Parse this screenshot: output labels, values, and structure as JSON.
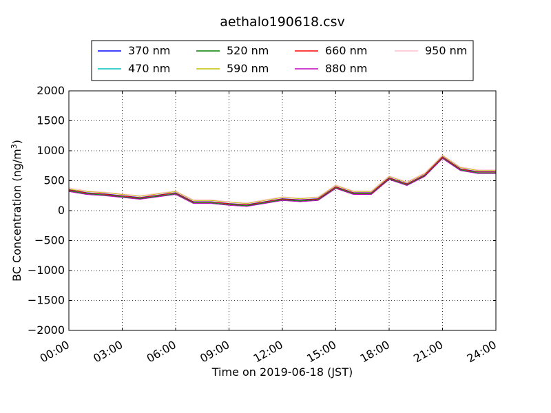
{
  "chart_data": {
    "type": "line",
    "title": "aethalo190618.csv",
    "xlabel": "Time on 2019-06-18 (JST)",
    "ylabel_main": "BC Concentration (ng/m",
    "ylabel_sup": "3",
    "ylabel_end": ")",
    "xlim_hours": [
      0,
      24
    ],
    "ylim": [
      -2000,
      2000
    ],
    "grid": true,
    "legend_placement": "top-center",
    "x_ticks": [
      {
        "hours": 0,
        "label": "00:00"
      },
      {
        "hours": 3,
        "label": "03:00"
      },
      {
        "hours": 6,
        "label": "06:00"
      },
      {
        "hours": 9,
        "label": "09:00"
      },
      {
        "hours": 12,
        "label": "12:00"
      },
      {
        "hours": 15,
        "label": "15:00"
      },
      {
        "hours": 18,
        "label": "18:00"
      },
      {
        "hours": 21,
        "label": "21:00"
      },
      {
        "hours": 24,
        "label": "24:00"
      }
    ],
    "y_ticks": [
      {
        "value": 2000,
        "label": "2000"
      },
      {
        "value": 1500,
        "label": "1500"
      },
      {
        "value": 1000,
        "label": "1000"
      },
      {
        "value": 500,
        "label": "500"
      },
      {
        "value": 0,
        "label": "0"
      },
      {
        "value": -500,
        "label": "−500"
      },
      {
        "value": -1000,
        "label": "−1000"
      },
      {
        "value": -1500,
        "label": "−1500"
      },
      {
        "value": -2000,
        "label": "−2000"
      }
    ],
    "series": [
      {
        "name": "370 nm",
        "color": "#0000ff",
        "x_hours": [
          0,
          1,
          2,
          3,
          4,
          5,
          6,
          7,
          8,
          9,
          10,
          11,
          12,
          13,
          14,
          15,
          16,
          17,
          18,
          19,
          20,
          21,
          22,
          23,
          24
        ],
        "values": [
          350,
          300,
          280,
          250,
          220,
          260,
          300,
          150,
          150,
          120,
          100,
          150,
          200,
          180,
          200,
          400,
          300,
          300,
          550,
          450,
          600,
          900,
          700,
          650,
          650
        ]
      },
      {
        "name": "470 nm",
        "color": "#00bfbf",
        "x_hours": [
          0,
          1,
          2,
          3,
          4,
          5,
          6,
          7,
          8,
          9,
          10,
          11,
          12,
          13,
          14,
          15,
          16,
          17,
          18,
          19,
          20,
          21,
          22,
          23,
          24
        ],
        "values": [
          340,
          290,
          270,
          240,
          210,
          250,
          290,
          140,
          140,
          110,
          90,
          140,
          190,
          170,
          190,
          390,
          290,
          290,
          540,
          440,
          590,
          890,
          690,
          640,
          640
        ]
      },
      {
        "name": "520 nm",
        "color": "#008000",
        "x_hours": [
          0,
          1,
          2,
          3,
          4,
          5,
          6,
          7,
          8,
          9,
          10,
          11,
          12,
          13,
          14,
          15,
          16,
          17,
          18,
          19,
          20,
          21,
          22,
          23,
          24
        ],
        "values": [
          330,
          280,
          260,
          230,
          200,
          240,
          280,
          130,
          130,
          100,
          80,
          130,
          180,
          160,
          180,
          380,
          280,
          280,
          530,
          430,
          580,
          880,
          680,
          630,
          630
        ]
      },
      {
        "name": "590 nm",
        "color": "#bfbf00",
        "x_hours": [
          0,
          1,
          2,
          3,
          4,
          5,
          6,
          7,
          8,
          9,
          10,
          11,
          12,
          13,
          14,
          15,
          16,
          17,
          18,
          19,
          20,
          21,
          22,
          23,
          24
        ],
        "values": [
          360,
          320,
          300,
          270,
          240,
          280,
          320,
          170,
          170,
          140,
          120,
          170,
          220,
          200,
          220,
          420,
          320,
          320,
          570,
          470,
          620,
          920,
          720,
          670,
          670
        ]
      },
      {
        "name": "660 nm",
        "color": "#ff0000",
        "x_hours": [
          0,
          1,
          2,
          3,
          4,
          5,
          6,
          7,
          8,
          9,
          10,
          11,
          12,
          13,
          14,
          15,
          16,
          17,
          18,
          19,
          20,
          21,
          22,
          23,
          24
        ],
        "values": [
          345,
          295,
          275,
          245,
          215,
          255,
          295,
          145,
          145,
          115,
          95,
          145,
          195,
          175,
          195,
          395,
          295,
          295,
          545,
          445,
          595,
          895,
          695,
          645,
          645
        ]
      },
      {
        "name": "880 nm",
        "color": "#bf00bf",
        "x_hours": [
          0,
          1,
          2,
          3,
          4,
          5,
          6,
          7,
          8,
          9,
          10,
          11,
          12,
          13,
          14,
          15,
          16,
          17,
          18,
          19,
          20,
          21,
          22,
          23,
          24
        ],
        "values": [
          320,
          270,
          250,
          220,
          190,
          230,
          270,
          120,
          120,
          90,
          70,
          120,
          170,
          150,
          170,
          370,
          270,
          270,
          520,
          420,
          570,
          870,
          670,
          620,
          620
        ]
      },
      {
        "name": "950 nm",
        "color": "#ffc0cb",
        "x_hours": [
          0,
          1,
          2,
          3,
          4,
          5,
          6,
          7,
          8,
          9,
          10,
          11,
          12,
          13,
          14,
          15,
          16,
          17,
          18,
          19,
          20,
          21,
          22,
          23,
          24
        ],
        "values": [
          380,
          330,
          310,
          280,
          250,
          290,
          330,
          180,
          180,
          150,
          130,
          180,
          230,
          210,
          230,
          430,
          330,
          330,
          580,
          480,
          630,
          930,
          730,
          680,
          680
        ]
      }
    ]
  }
}
